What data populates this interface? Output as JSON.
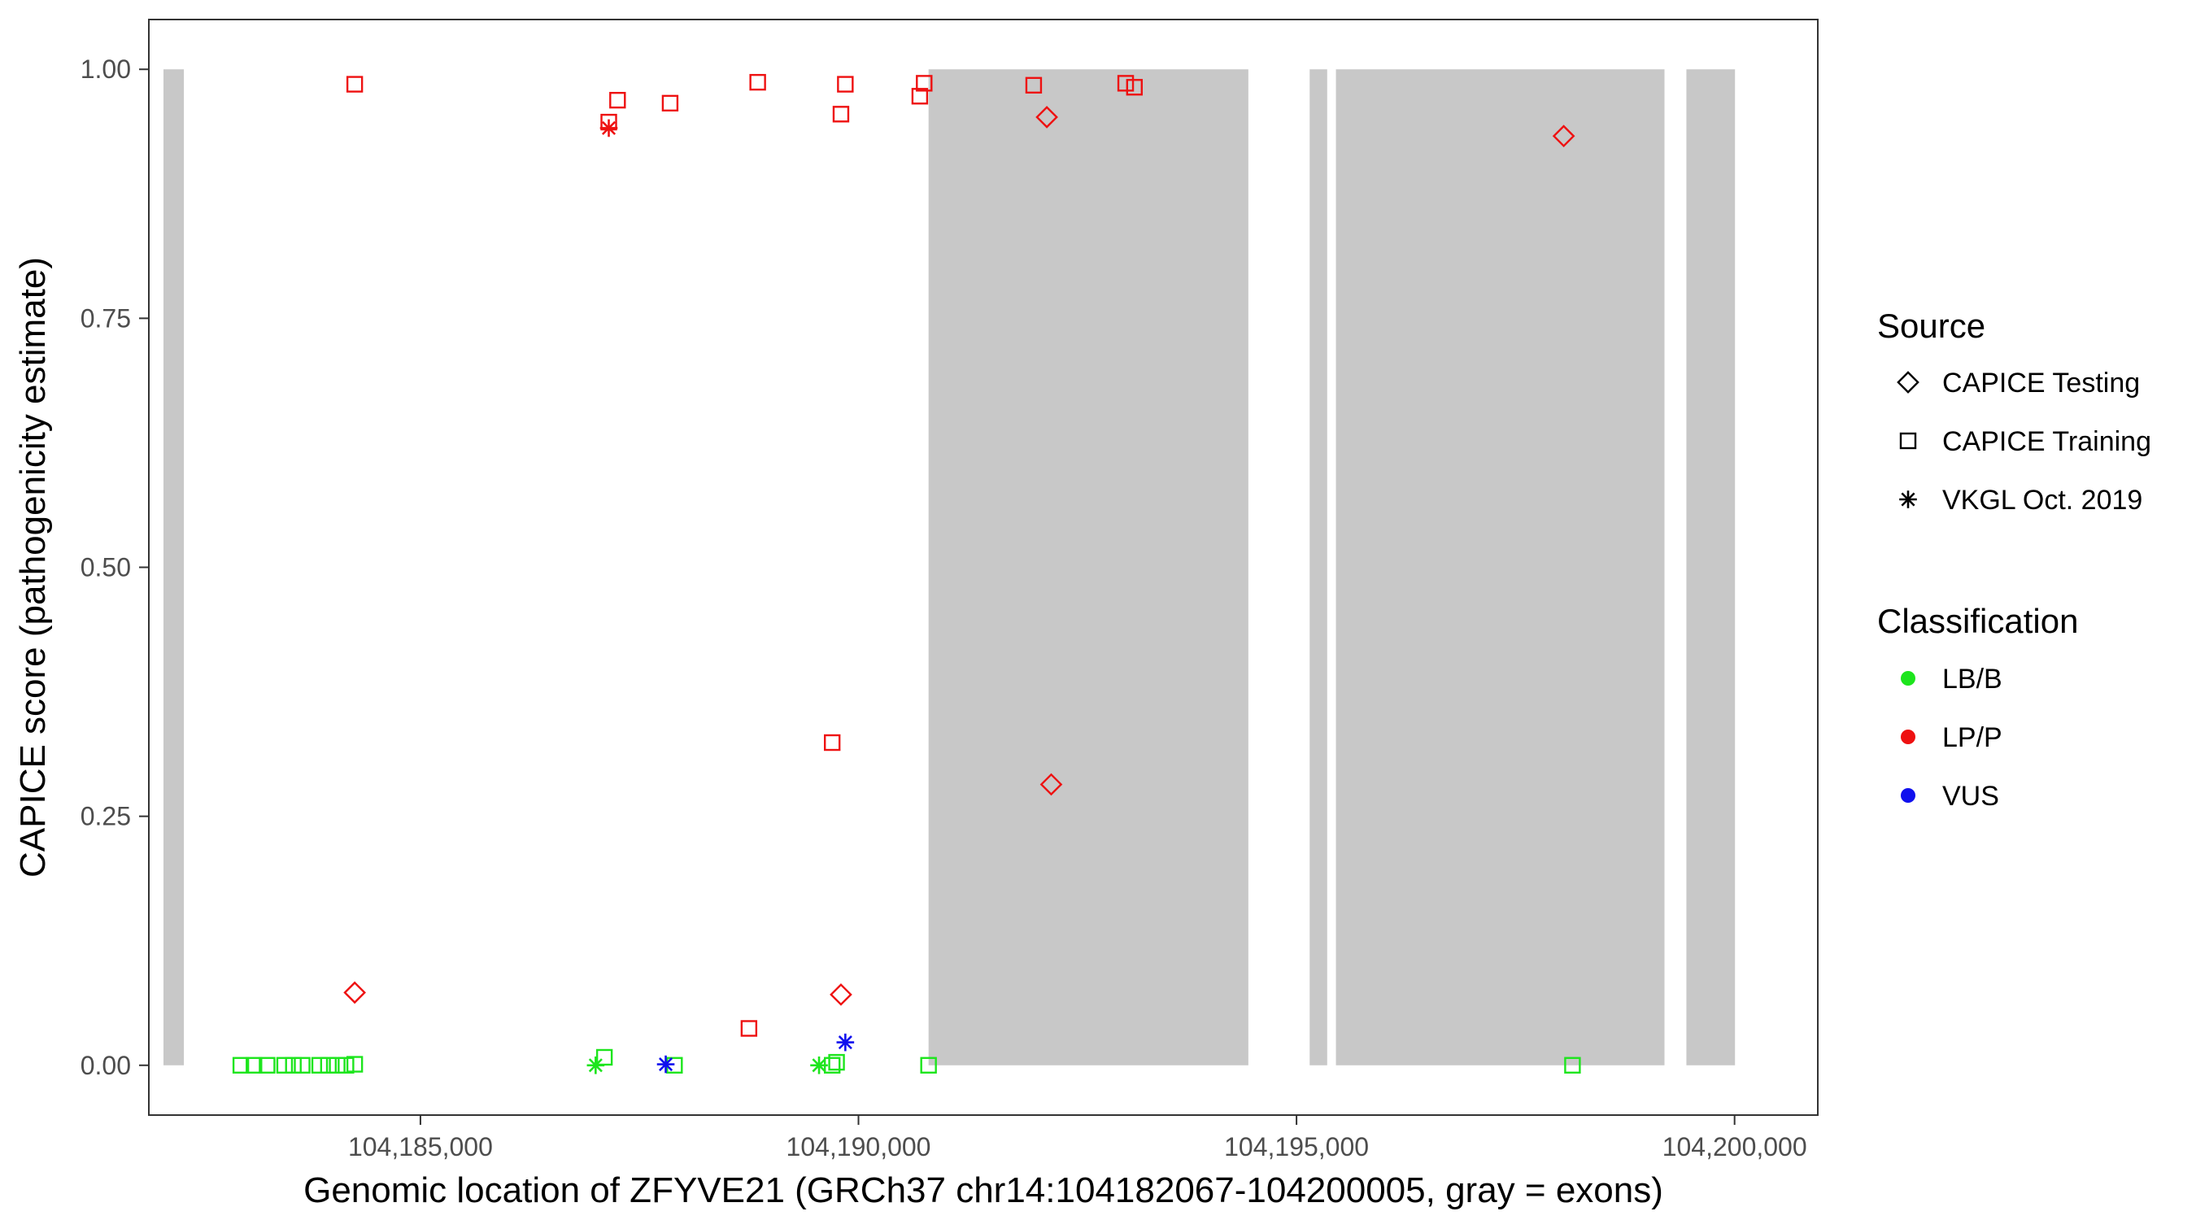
{
  "chart_data": {
    "type": "scatter",
    "title": "",
    "xlabel": "Genomic location of ZFYVE21 (GRCh37 chr14:104182067-104200005, gray = exons)",
    "ylabel": "CAPICE score (pathogenicity estimate)",
    "xlim": [
      104181900,
      104200950
    ],
    "ylim": [
      -0.05,
      1.05
    ],
    "x_ticks": [
      104185000,
      104190000,
      104195000,
      104200000
    ],
    "x_tick_labels": [
      "104,185,000",
      "104,190,000",
      "104,195,000",
      "104,200,000"
    ],
    "y_ticks": [
      0,
      0.25,
      0.5,
      0.75,
      1.0
    ],
    "y_tick_labels": [
      "0.00",
      "0.25",
      "0.50",
      "0.75",
      "1.00"
    ],
    "grid": false,
    "exons": [
      {
        "start": 104182067,
        "end": 104182300,
        "ymin": 0,
        "ymax": 1
      },
      {
        "start": 104190800,
        "end": 104194450,
        "ymin": 0,
        "ymax": 1
      },
      {
        "start": 104195150,
        "end": 104195350,
        "ymin": 0,
        "ymax": 1
      },
      {
        "start": 104195450,
        "end": 104199200,
        "ymin": 0,
        "ymax": 1
      },
      {
        "start": 104199450,
        "end": 104200005,
        "ymin": 0,
        "ymax": 1
      }
    ],
    "legend": {
      "placement": "right",
      "source_title": "Source",
      "classification_title": "Classification",
      "sources": [
        {
          "label": "CAPICE Testing",
          "shape": "diamond"
        },
        {
          "label": "CAPICE Training",
          "shape": "square"
        },
        {
          "label": "VKGL Oct. 2019",
          "shape": "asterisk"
        }
      ],
      "classes": [
        {
          "label": "LB/B",
          "color": "#1de51d"
        },
        {
          "label": "LP/P",
          "color": "#ee1111"
        },
        {
          "label": "VUS",
          "color": "#1010ee"
        }
      ]
    },
    "colors": {
      "LB/B": "#1de51d",
      "LP/P": "#ee1111",
      "VUS": "#1010ee",
      "exon": "#c8c8c8"
    },
    "points": [
      {
        "x": 104184250,
        "y": 0.985,
        "source": "CAPICE Training",
        "cls": "LP/P"
      },
      {
        "x": 104187150,
        "y": 0.947,
        "source": "CAPICE Training",
        "cls": "LP/P"
      },
      {
        "x": 104187250,
        "y": 0.969,
        "source": "CAPICE Training",
        "cls": "LP/P"
      },
      {
        "x": 104187850,
        "y": 0.966,
        "source": "CAPICE Training",
        "cls": "LP/P"
      },
      {
        "x": 104188850,
        "y": 0.987,
        "source": "CAPICE Training",
        "cls": "LP/P"
      },
      {
        "x": 104189850,
        "y": 0.985,
        "source": "CAPICE Training",
        "cls": "LP/P"
      },
      {
        "x": 104189800,
        "y": 0.955,
        "source": "CAPICE Training",
        "cls": "LP/P"
      },
      {
        "x": 104190750,
        "y": 0.986,
        "source": "CAPICE Training",
        "cls": "LP/P"
      },
      {
        "x": 104190700,
        "y": 0.973,
        "source": "CAPICE Training",
        "cls": "LP/P"
      },
      {
        "x": 104192000,
        "y": 0.984,
        "source": "CAPICE Training",
        "cls": "LP/P"
      },
      {
        "x": 104193050,
        "y": 0.986,
        "source": "CAPICE Training",
        "cls": "LP/P"
      },
      {
        "x": 104193150,
        "y": 0.982,
        "source": "CAPICE Training",
        "cls": "LP/P"
      },
      {
        "x": 104189700,
        "y": 0.324,
        "source": "CAPICE Training",
        "cls": "LP/P"
      },
      {
        "x": 104188750,
        "y": 0.037,
        "source": "CAPICE Training",
        "cls": "LP/P"
      },
      {
        "x": 104192150,
        "y": 0.952,
        "source": "CAPICE Testing",
        "cls": "LP/P"
      },
      {
        "x": 104198050,
        "y": 0.933,
        "source": "CAPICE Testing",
        "cls": "LP/P"
      },
      {
        "x": 104192200,
        "y": 0.282,
        "source": "CAPICE Testing",
        "cls": "LP/P"
      },
      {
        "x": 104184250,
        "y": 0.073,
        "source": "CAPICE Testing",
        "cls": "LP/P"
      },
      {
        "x": 104189800,
        "y": 0.071,
        "source": "CAPICE Testing",
        "cls": "LP/P"
      },
      {
        "x": 104187150,
        "y": 0.941,
        "source": "VKGL Oct. 2019",
        "cls": "LP/P"
      },
      {
        "x": 104182950,
        "y": 0.0,
        "source": "CAPICE Training",
        "cls": "LB/B"
      },
      {
        "x": 104183100,
        "y": 0.0,
        "source": "CAPICE Training",
        "cls": "LB/B"
      },
      {
        "x": 104183250,
        "y": 0.0,
        "source": "CAPICE Training",
        "cls": "LB/B"
      },
      {
        "x": 104183450,
        "y": 0.0,
        "source": "CAPICE Training",
        "cls": "LB/B"
      },
      {
        "x": 104183550,
        "y": 0.0,
        "source": "CAPICE Training",
        "cls": "LB/B"
      },
      {
        "x": 104183650,
        "y": 0.0,
        "source": "CAPICE Training",
        "cls": "LB/B"
      },
      {
        "x": 104183850,
        "y": 0.0,
        "source": "CAPICE Training",
        "cls": "LB/B"
      },
      {
        "x": 104183950,
        "y": 0.0,
        "source": "CAPICE Training",
        "cls": "LB/B"
      },
      {
        "x": 104184050,
        "y": 0.0,
        "source": "CAPICE Training",
        "cls": "LB/B"
      },
      {
        "x": 104184150,
        "y": 0.0,
        "source": "CAPICE Training",
        "cls": "LB/B"
      },
      {
        "x": 104184250,
        "y": 0.001,
        "source": "CAPICE Training",
        "cls": "LB/B"
      },
      {
        "x": 104187100,
        "y": 0.008,
        "source": "CAPICE Training",
        "cls": "LB/B"
      },
      {
        "x": 104187900,
        "y": 0.0,
        "source": "CAPICE Training",
        "cls": "LB/B"
      },
      {
        "x": 104189700,
        "y": 0.0,
        "source": "CAPICE Training",
        "cls": "LB/B"
      },
      {
        "x": 104189750,
        "y": 0.003,
        "source": "CAPICE Training",
        "cls": "LB/B"
      },
      {
        "x": 104190800,
        "y": 0.0,
        "source": "CAPICE Training",
        "cls": "LB/B"
      },
      {
        "x": 104198150,
        "y": 0.0,
        "source": "CAPICE Training",
        "cls": "LB/B"
      },
      {
        "x": 104187000,
        "y": 0.0,
        "source": "VKGL Oct. 2019",
        "cls": "LB/B"
      },
      {
        "x": 104189550,
        "y": 0.0,
        "source": "VKGL Oct. 2019",
        "cls": "LB/B"
      },
      {
        "x": 104187800,
        "y": 0.001,
        "source": "VKGL Oct. 2019",
        "cls": "VUS"
      },
      {
        "x": 104189850,
        "y": 0.023,
        "source": "VKGL Oct. 2019",
        "cls": "VUS"
      }
    ]
  }
}
